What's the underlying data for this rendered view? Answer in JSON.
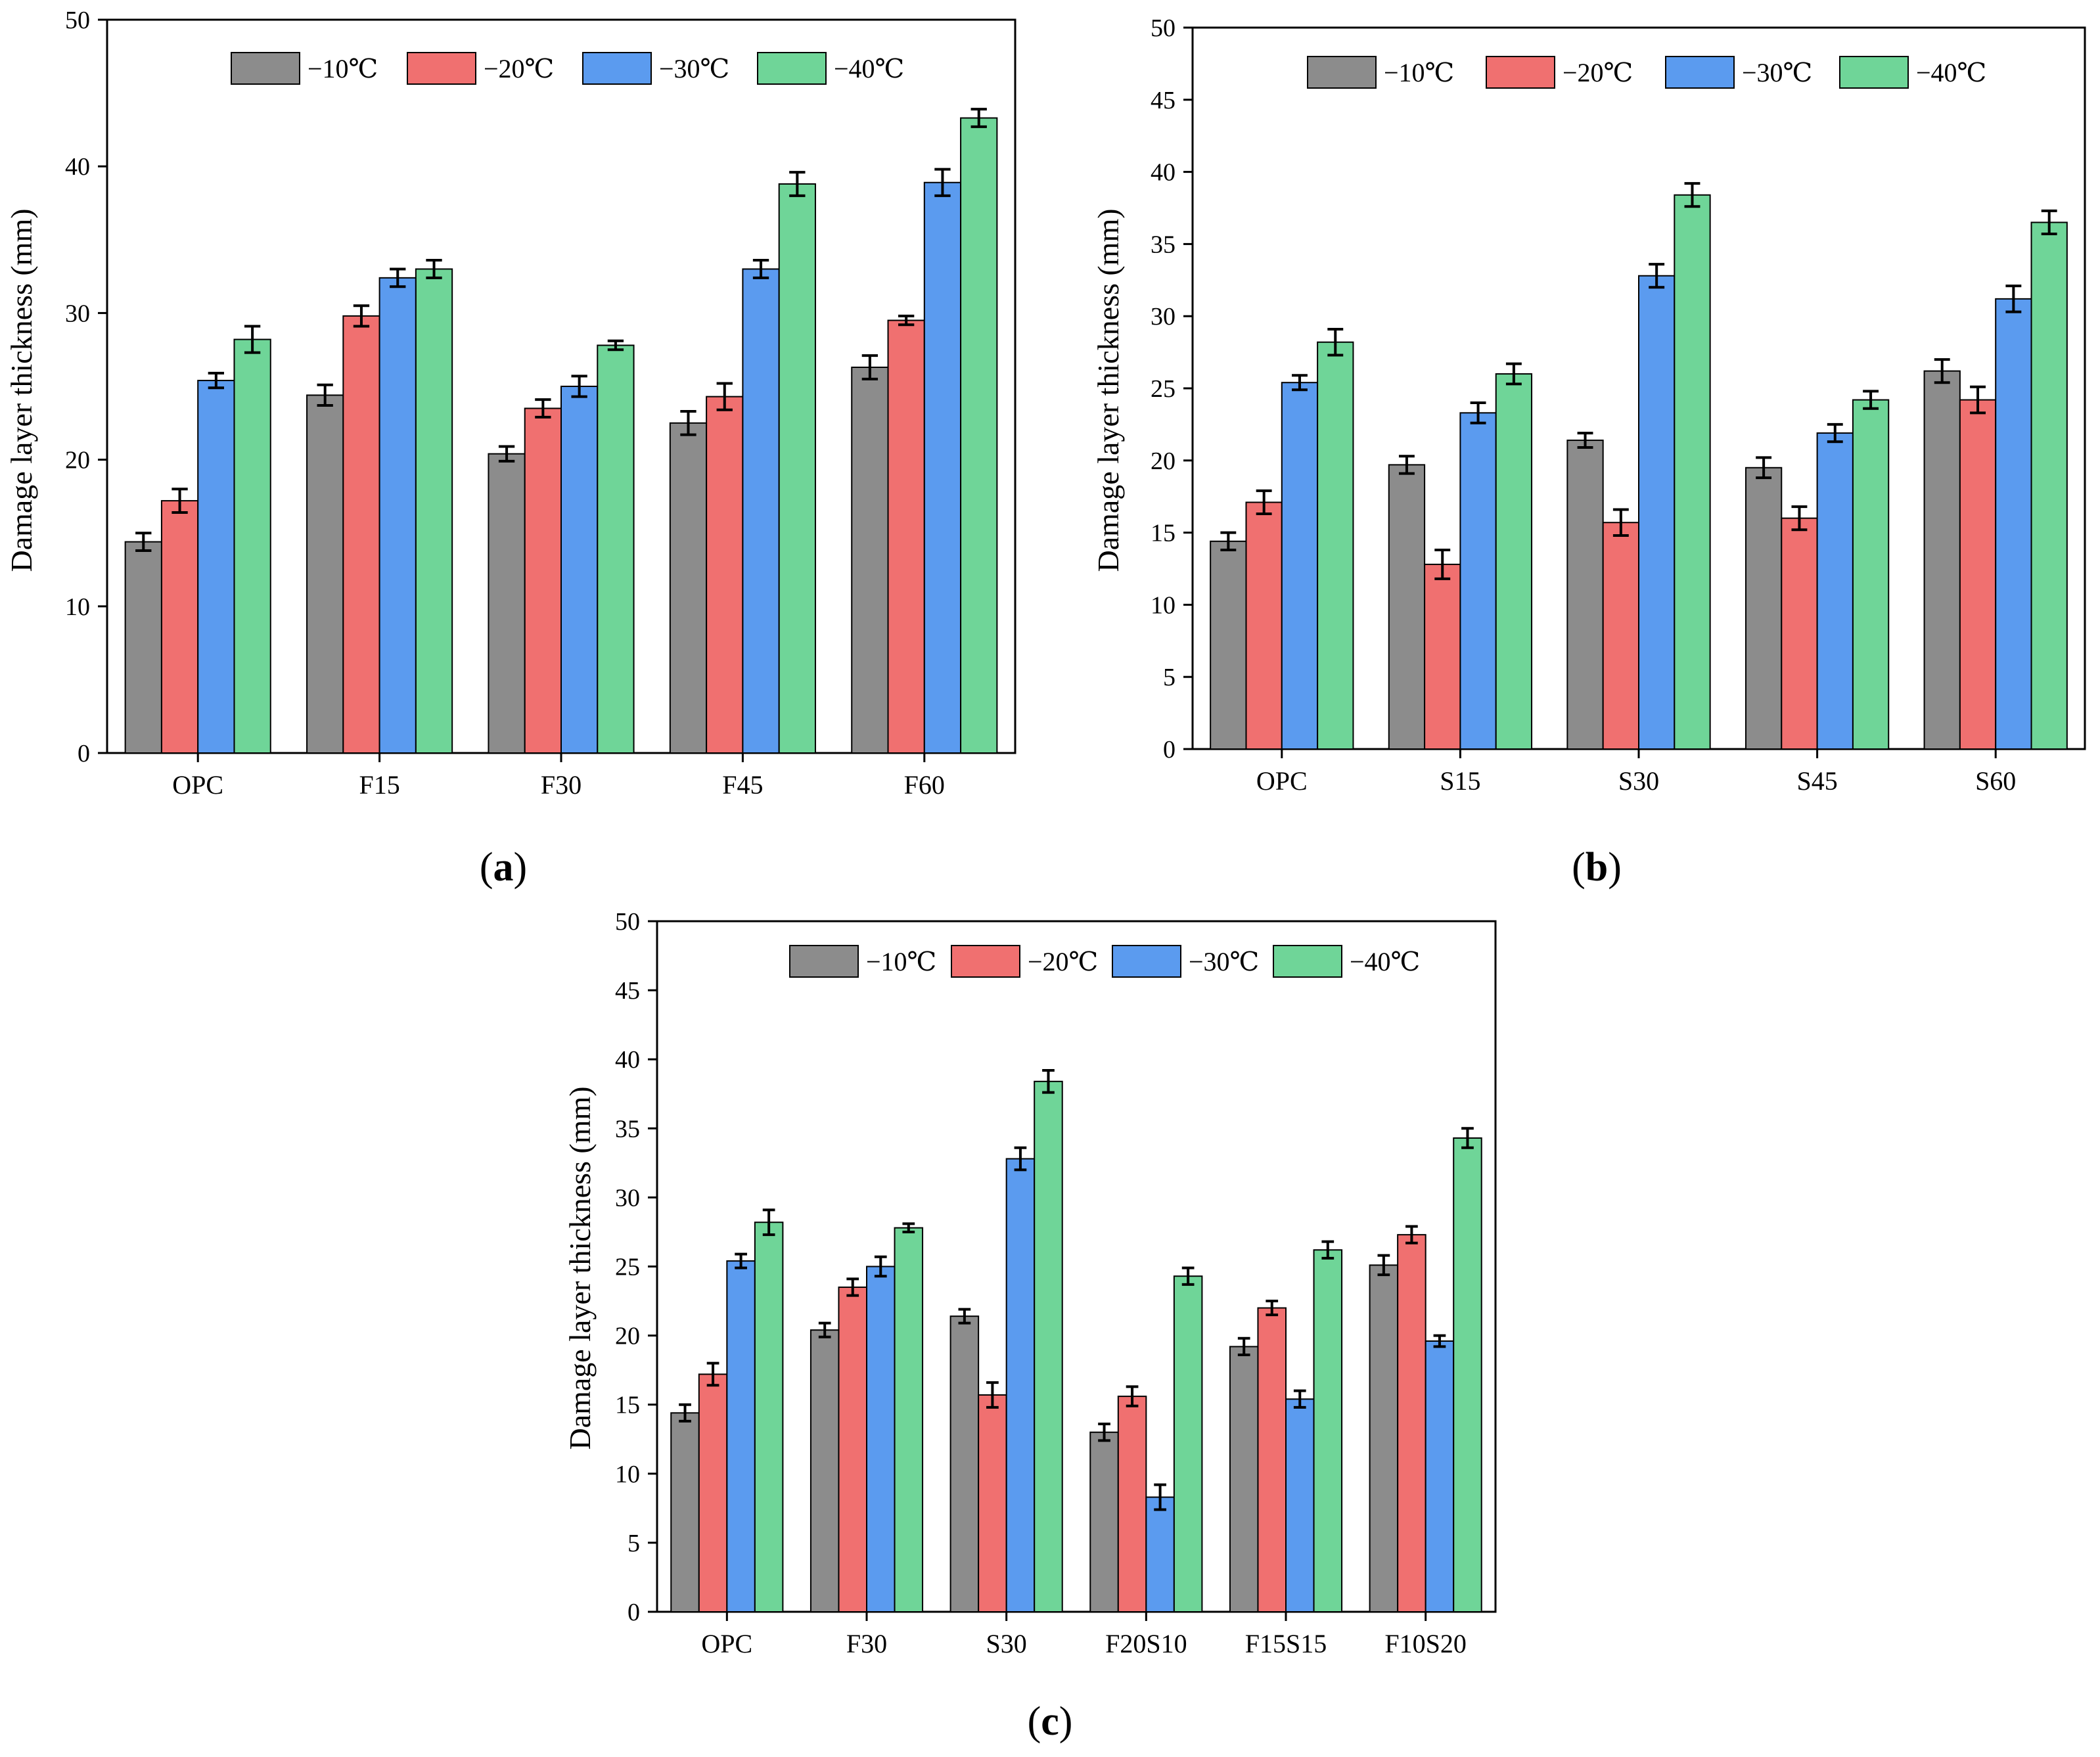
{
  "colors": {
    "-10": "#8c8c8c",
    "-20": "#f07070",
    "-30": "#5b9bef",
    "-40": "#6fd598"
  },
  "chart_data": [
    {
      "type": "bar",
      "panel_label": "a",
      "ylabel": "Damage layer thickness (mm)",
      "xlabel": "",
      "ylim": [
        0,
        50
      ],
      "yticks": [
        0,
        10,
        20,
        30,
        40,
        50
      ],
      "legend_position": "top",
      "categories": [
        "OPC",
        "F15",
        "F30",
        "F45",
        "F60"
      ],
      "series": [
        {
          "name": "−10℃",
          "color_key": "-10",
          "values": [
            14.4,
            24.4,
            20.4,
            22.5,
            26.3
          ],
          "errors": [
            0.6,
            0.7,
            0.5,
            0.8,
            0.8
          ]
        },
        {
          "name": "−20℃",
          "color_key": "-20",
          "values": [
            17.2,
            29.8,
            23.5,
            24.3,
            29.5
          ],
          "errors": [
            0.8,
            0.7,
            0.6,
            0.9,
            0.3
          ]
        },
        {
          "name": "−30℃",
          "color_key": "-30",
          "values": [
            25.4,
            32.4,
            25.0,
            33.0,
            38.9
          ],
          "errors": [
            0.5,
            0.6,
            0.7,
            0.6,
            0.9
          ]
        },
        {
          "name": "−40℃",
          "color_key": "-40",
          "values": [
            28.2,
            33.0,
            27.8,
            38.8,
            43.3
          ],
          "errors": [
            0.9,
            0.6,
            0.3,
            0.8,
            0.6
          ]
        }
      ]
    },
    {
      "type": "bar",
      "panel_label": "b",
      "ylabel": "Damage layer thickness (mm)",
      "xlabel": "",
      "ylim": [
        0,
        50
      ],
      "yticks": [
        0,
        5,
        10,
        15,
        20,
        25,
        30,
        35,
        40,
        45,
        50
      ],
      "legend_position": "top",
      "categories": [
        "OPC",
        "S15",
        "S30",
        "S45",
        "S60"
      ],
      "series": [
        {
          "name": "−10℃",
          "color_key": "-10",
          "values": [
            14.4,
            19.7,
            21.4,
            19.5,
            26.2
          ],
          "errors": [
            0.6,
            0.6,
            0.5,
            0.7,
            0.8
          ]
        },
        {
          "name": "−20℃",
          "color_key": "-20",
          "values": [
            17.1,
            12.8,
            15.7,
            16.0,
            24.2
          ],
          "errors": [
            0.8,
            1.0,
            0.9,
            0.8,
            0.9
          ]
        },
        {
          "name": "−30℃",
          "color_key": "-30",
          "values": [
            25.4,
            23.3,
            32.8,
            21.9,
            31.2
          ],
          "errors": [
            0.5,
            0.7,
            0.8,
            0.6,
            0.9
          ]
        },
        {
          "name": "−40℃",
          "color_key": "-40",
          "values": [
            28.2,
            26.0,
            38.4,
            24.2,
            36.5
          ],
          "errors": [
            0.9,
            0.7,
            0.8,
            0.6,
            0.8
          ]
        }
      ]
    },
    {
      "type": "bar",
      "panel_label": "c",
      "ylabel": "Damage layer thickness (mm)",
      "xlabel": "",
      "ylim": [
        0,
        50
      ],
      "yticks": [
        0,
        5,
        10,
        15,
        20,
        25,
        30,
        35,
        40,
        45,
        50
      ],
      "legend_position": "top",
      "categories": [
        "OPC",
        "F30",
        "S30",
        "F20S10",
        "F15S15",
        "F10S20"
      ],
      "series": [
        {
          "name": "−10℃",
          "color_key": "-10",
          "values": [
            14.4,
            20.4,
            21.4,
            13.0,
            19.2,
            25.1
          ],
          "errors": [
            0.6,
            0.5,
            0.5,
            0.6,
            0.6,
            0.7
          ]
        },
        {
          "name": "−20℃",
          "color_key": "-20",
          "values": [
            17.2,
            23.5,
            15.7,
            15.6,
            22.0,
            27.3
          ],
          "errors": [
            0.8,
            0.6,
            0.9,
            0.7,
            0.5,
            0.6
          ]
        },
        {
          "name": "−30℃",
          "color_key": "-30",
          "values": [
            25.4,
            25.0,
            32.8,
            8.3,
            15.4,
            19.6
          ],
          "errors": [
            0.5,
            0.7,
            0.8,
            0.9,
            0.6,
            0.4
          ]
        },
        {
          "name": "−40℃",
          "color_key": "-40",
          "values": [
            28.2,
            27.8,
            38.4,
            24.3,
            26.2,
            34.3
          ],
          "errors": [
            0.9,
            0.3,
            0.8,
            0.6,
            0.6,
            0.7
          ]
        }
      ]
    }
  ]
}
